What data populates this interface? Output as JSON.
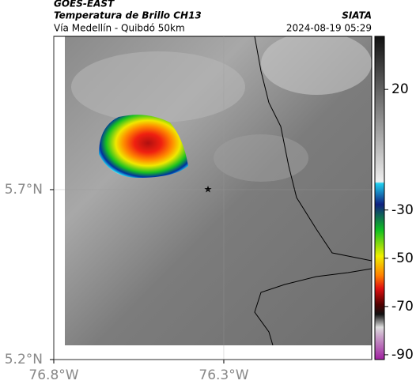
{
  "header": {
    "satellite": "GOES-EAST",
    "product": "Temperatura de Brillo CH13",
    "source": "SIATA",
    "region": "Vía Medellín - Quibdó 50km",
    "datetime": "2024-08-19 05:29"
  },
  "map": {
    "xlim": [
      -76.8,
      -75.865
    ],
    "ylim": [
      5.2,
      6.151
    ],
    "xticks": [
      {
        "value": -76.8,
        "label": "76.8°W"
      },
      {
        "value": -76.3,
        "label": "76.3°W"
      }
    ],
    "yticks": [
      {
        "value": 5.7,
        "label": "5.7°N"
      },
      {
        "value": 5.2,
        "label": "5.2°N"
      }
    ]
  },
  "colorbar": {
    "lim": [
      -92,
      42
    ],
    "ticks": [
      20,
      -30,
      -50,
      -70,
      -90
    ]
  }
}
